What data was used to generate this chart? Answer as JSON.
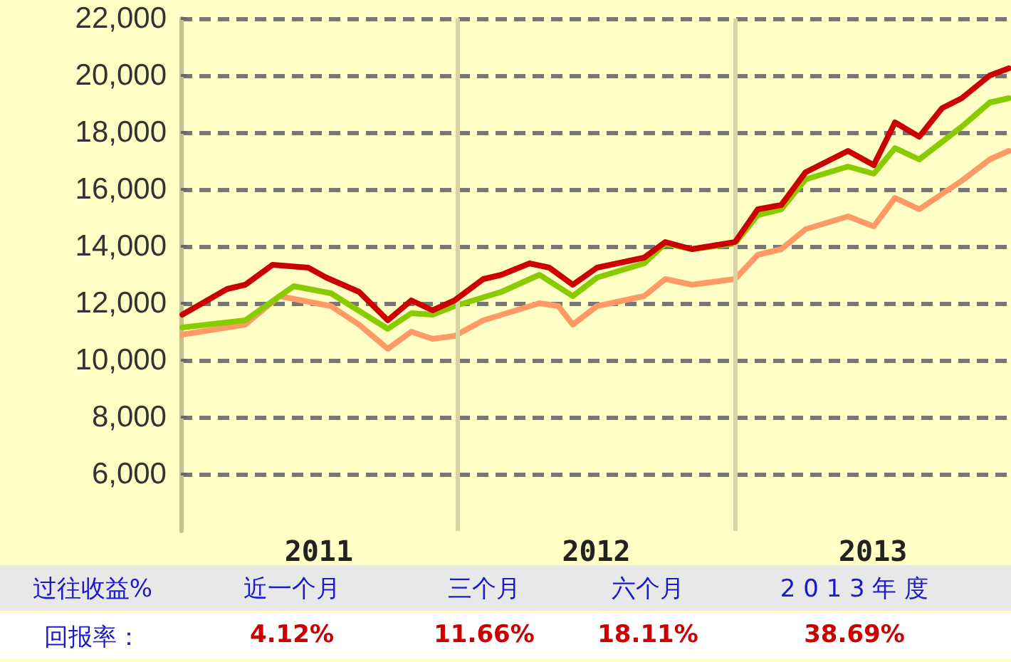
{
  "chart_data": {
    "type": "line",
    "marker": "none",
    "line_style": "solid",
    "grid": "y",
    "xlim": [
      "2011-01-01",
      "2013-12-31"
    ],
    "xticks": [
      {
        "value": "2011-07-02",
        "label": "2011"
      },
      {
        "value": "2012-07-02",
        "label": "2012"
      },
      {
        "value": "2013-07-02",
        "label": "2013"
      }
    ],
    "ylim": [
      4000,
      22000
    ],
    "yticks": [
      {
        "value": 6000,
        "label": "6,000"
      },
      {
        "value": 8000,
        "label": "8,000"
      },
      {
        "value": 10000,
        "label": "10,000"
      },
      {
        "value": 12000,
        "label": "12,000"
      },
      {
        "value": 14000,
        "label": "14,000"
      },
      {
        "value": 16000,
        "label": "16,000"
      },
      {
        "value": 18000,
        "label": "18,000"
      },
      {
        "value": 20000,
        "label": "20,000"
      },
      {
        "value": 22000,
        "label": "22,000"
      }
    ],
    "ref_lines": [
      {
        "axis": "x",
        "value": "2012-01-01",
        "color": "#d9d4a3"
      },
      {
        "axis": "x",
        "value": "2013-01-01",
        "color": "#d9d4a3"
      }
    ],
    "series": [
      {
        "color": "#ff9966",
        "x": [
          "2011-01-03",
          "2011-03-27",
          "2011-05-11",
          "2011-07-18",
          "2011-08-24",
          "2011-10-01",
          "2011-11-01",
          "2011-11-29",
          "2011-12-28",
          "2012-02-04",
          "2012-04-18",
          "2012-05-13",
          "2012-06-01",
          "2012-07-03",
          "2012-09-03",
          "2012-10-01",
          "2012-11-05",
          "2013-01-01",
          "2013-01-31",
          "2013-03-03",
          "2013-04-04",
          "2013-05-30",
          "2013-07-03",
          "2013-07-31",
          "2013-09-01",
          "2013-10-27",
          "2013-12-03",
          "2013-12-28"
        ],
        "values": [
          10900,
          11250,
          12250,
          11900,
          11250,
          10400,
          11000,
          10750,
          10850,
          11400,
          12000,
          11900,
          11250,
          11900,
          12250,
          12850,
          12650,
          12850,
          13700,
          13900,
          14600,
          15050,
          14700,
          15700,
          15300,
          16300,
          17050,
          17350
        ]
      },
      {
        "color": "#88cc00",
        "x": [
          "2011-01-03",
          "2011-03-27",
          "2011-05-30",
          "2011-07-18",
          "2011-10-01",
          "2011-11-01",
          "2011-11-29",
          "2011-12-28",
          "2012-02-28",
          "2012-04-18",
          "2012-06-01",
          "2012-07-03",
          "2012-09-03",
          "2012-10-01",
          "2012-11-05",
          "2013-01-01",
          "2013-01-31",
          "2013-03-03",
          "2013-04-04",
          "2013-05-30",
          "2013-07-03",
          "2013-07-31",
          "2013-09-01",
          "2013-10-27",
          "2013-12-03",
          "2013-12-28"
        ],
        "values": [
          11150,
          11400,
          12600,
          12350,
          11100,
          11650,
          11600,
          11900,
          12400,
          13000,
          12250,
          12900,
          13400,
          14100,
          13900,
          14100,
          15100,
          15300,
          16350,
          16800,
          16550,
          17450,
          17050,
          18200,
          19050,
          19200
        ]
      },
      {
        "color": "#cc0000",
        "x": [
          "2011-01-03",
          "2011-03-03",
          "2011-03-27",
          "2011-05-02",
          "2011-06-18",
          "2011-07-12",
          "2011-08-24",
          "2011-10-01",
          "2011-11-01",
          "2011-11-29",
          "2011-12-28",
          "2012-02-04",
          "2012-02-28",
          "2012-04-05",
          "2012-05-01",
          "2012-06-01",
          "2012-07-03",
          "2012-09-03",
          "2012-10-01",
          "2012-11-05",
          "2013-01-01",
          "2013-01-31",
          "2013-03-03",
          "2013-04-04",
          "2013-05-30",
          "2013-07-03",
          "2013-07-31",
          "2013-09-01",
          "2013-10-01",
          "2013-10-27",
          "2013-12-03",
          "2013-12-28"
        ],
        "values": [
          11600,
          12500,
          12650,
          13350,
          13250,
          12900,
          12400,
          11400,
          12100,
          11750,
          12100,
          12850,
          13000,
          13400,
          13250,
          12650,
          13250,
          13600,
          14150,
          13900,
          14150,
          15300,
          15450,
          16600,
          17350,
          16850,
          18350,
          17850,
          18850,
          19200,
          20000,
          20250
        ]
      }
    ],
    "annotations": [
      "过往收益%",
      "近一个月",
      "三个月",
      "六个月",
      "2 0 1 3 年 度",
      "回报率：",
      "4.12%",
      "11.66%",
      "18.11%",
      "38.69%"
    ]
  }
}
